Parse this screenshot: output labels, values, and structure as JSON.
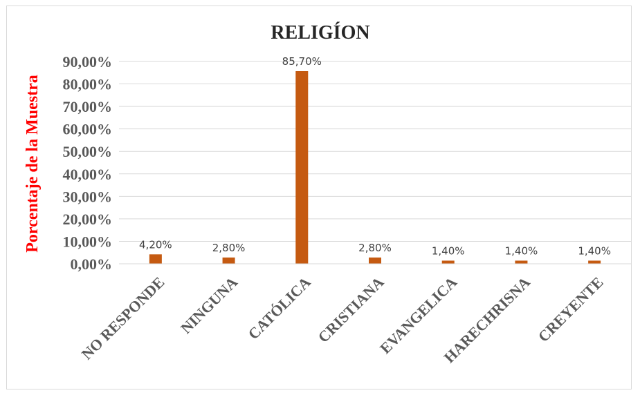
{
  "chart_data": {
    "type": "bar",
    "title": "RELIGÍON",
    "ylabel": "Porcentaje de la Muestra",
    "xlabel": "",
    "categories": [
      "NO RESPONDE",
      "NINGUNA",
      "CATÓLICA",
      "CRISTIANA",
      "EVANGELICA",
      "HARECHRISNA",
      "CREYENTE"
    ],
    "values": [
      4.2,
      2.8,
      85.7,
      2.8,
      1.4,
      1.4,
      1.4
    ],
    "data_labels": [
      "4,20%",
      "2,80%",
      "85,70%",
      "2,80%",
      "1,40%",
      "1,40%",
      "1,40%"
    ],
    "ylim": [
      0,
      90
    ],
    "yticks": [
      0,
      10,
      20,
      30,
      40,
      50,
      60,
      70,
      80,
      90
    ],
    "ytick_labels": [
      "0,00%",
      "10,00%",
      "20,00%",
      "30,00%",
      "40,00%",
      "50,00%",
      "60,00%",
      "70,00%",
      "80,00%",
      "90,00%"
    ],
    "grid": true,
    "legend": "none",
    "bar_color": "#c55a11"
  }
}
